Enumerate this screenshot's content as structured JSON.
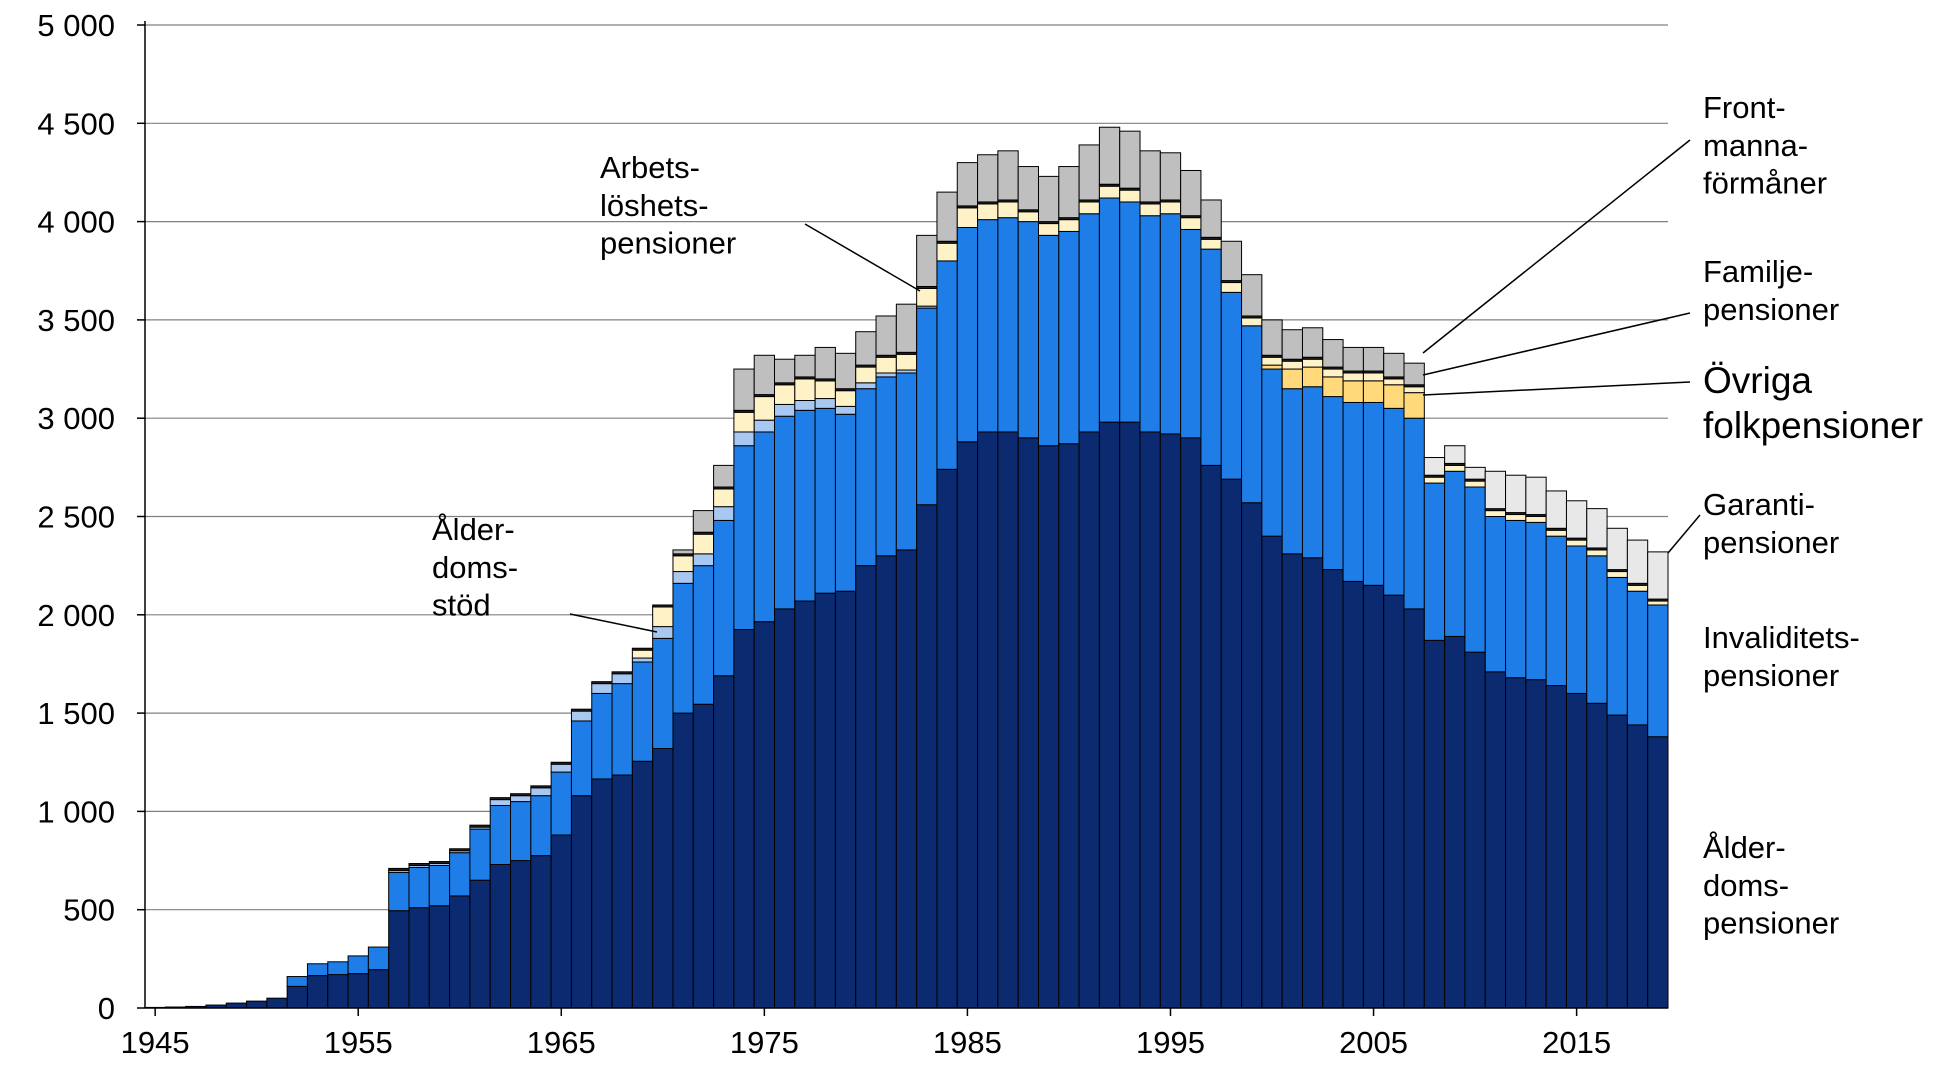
{
  "chart_data": {
    "type": "stacked_bar",
    "x": [
      1945,
      1946,
      1947,
      1948,
      1949,
      1950,
      1951,
      1952,
      1953,
      1954,
      1955,
      1956,
      1957,
      1958,
      1959,
      1960,
      1961,
      1962,
      1963,
      1964,
      1965,
      1966,
      1967,
      1968,
      1969,
      1970,
      1971,
      1972,
      1973,
      1974,
      1975,
      1976,
      1977,
      1978,
      1979,
      1980,
      1981,
      1982,
      1983,
      1984,
      1985,
      1986,
      1987,
      1988,
      1989,
      1990,
      1991,
      1992,
      1993,
      1994,
      1995,
      1996,
      1997,
      1998,
      1999,
      2000,
      2001,
      2002,
      2003,
      2004,
      2005,
      2006,
      2007,
      2008,
      2009,
      2010,
      2011,
      2012,
      2013,
      2014,
      2015,
      2016,
      2017,
      2018,
      2019
    ],
    "xlim": [
      1944.5,
      2019.5
    ],
    "xticks": [
      1945,
      1955,
      1965,
      1975,
      1985,
      1995,
      2005,
      2015
    ],
    "ylim": [
      0,
      5000
    ],
    "yticks": [
      0,
      500,
      {
        "value": 1000,
        "label": "1 000"
      },
      {
        "value": 1500,
        "label": "1 500"
      },
      {
        "value": 2000,
        "label": "2 000"
      },
      {
        "value": 2500,
        "label": "2 500"
      },
      {
        "value": 3000,
        "label": "3 000"
      },
      {
        "value": 3500,
        "label": "3 500"
      },
      {
        "value": 4000,
        "label": "4 000"
      },
      {
        "value": 4500,
        "label": "4 500"
      },
      {
        "value": 5000,
        "label": "5 000"
      }
    ],
    "grid": true,
    "series": [
      {
        "name": "Ålder-\ndoms-\npensioner",
        "color": "#0b2a6f",
        "values": [
          3,
          5,
          8,
          15,
          25,
          35,
          50,
          110,
          165,
          170,
          175,
          195,
          495,
          510,
          520,
          570,
          650,
          730,
          750,
          775,
          880,
          1080,
          1165,
          1185,
          1255,
          1320,
          1500,
          1545,
          1690,
          1925,
          1965,
          2030,
          2070,
          2110,
          2120,
          2250,
          2300,
          2330,
          2560,
          2740,
          2880,
          2930,
          2930,
          2900,
          2860,
          2870,
          2930,
          2980,
          2980,
          2930,
          2920,
          2900,
          2760,
          2690,
          2570,
          2400,
          2310,
          2290,
          2230,
          2170,
          2150,
          2100,
          2030,
          1870,
          1890,
          1810,
          1710,
          1680,
          1670,
          1640,
          1600,
          1550,
          1490,
          1440,
          1380
        ]
      },
      {
        "name": "Invaliditets-\npensioner",
        "color": "#1f7de8",
        "values": [
          0,
          0,
          0,
          0,
          0,
          0,
          0,
          50,
          60,
          65,
          90,
          115,
          195,
          205,
          205,
          220,
          260,
          300,
          300,
          305,
          320,
          380,
          435,
          465,
          505,
          560,
          660,
          705,
          790,
          935,
          965,
          980,
          970,
          940,
          900,
          900,
          910,
          900,
          1000,
          1060,
          1090,
          1080,
          1090,
          1100,
          1070,
          1080,
          1110,
          1140,
          1120,
          1100,
          1120,
          1060,
          1100,
          950,
          900,
          850,
          840,
          870,
          880,
          910,
          930,
          950,
          970,
          800,
          840,
          840,
          790,
          800,
          800,
          760,
          750,
          750,
          700,
          680,
          670
        ]
      },
      {
        "name": "Ålder-\ndoms-\nstöd",
        "color": "#a8c8f2",
        "values": [
          0,
          0,
          0,
          0,
          0,
          0,
          0,
          0,
          0,
          0,
          0,
          0,
          10,
          10,
          10,
          10,
          10,
          30,
          30,
          40,
          40,
          50,
          50,
          50,
          20,
          60,
          60,
          60,
          70,
          70,
          60,
          60,
          50,
          50,
          40,
          30,
          20,
          15,
          10,
          0,
          0,
          0,
          0,
          0,
          0,
          0,
          0,
          0,
          0,
          0,
          0,
          0,
          0,
          0,
          0,
          0,
          0,
          0,
          0,
          0,
          0,
          0,
          0,
          0,
          0,
          0,
          0,
          0,
          0,
          0,
          0,
          0,
          0,
          0,
          0
        ]
      },
      {
        "name": "Övriga\nfolkpensioner",
        "color": "#ffd97a",
        "values": [
          0,
          0,
          0,
          0,
          0,
          0,
          0,
          0,
          0,
          0,
          0,
          0,
          0,
          0,
          0,
          0,
          0,
          0,
          0,
          0,
          0,
          0,
          0,
          0,
          0,
          0,
          0,
          0,
          0,
          0,
          0,
          0,
          0,
          0,
          0,
          0,
          0,
          0,
          0,
          0,
          0,
          0,
          0,
          0,
          0,
          0,
          0,
          0,
          0,
          0,
          0,
          0,
          0,
          0,
          0,
          20,
          100,
          100,
          100,
          110,
          110,
          120,
          130,
          0,
          0,
          0,
          0,
          0,
          0,
          0,
          0,
          0,
          0,
          0,
          0
        ]
      },
      {
        "name": "Arbets-\nlöshets-\npensioner",
        "color": "#fff2c6",
        "values": [
          0,
          0,
          0,
          0,
          0,
          0,
          0,
          0,
          0,
          0,
          0,
          0,
          0,
          0,
          0,
          0,
          0,
          0,
          0,
          0,
          0,
          0,
          0,
          0,
          40,
          100,
          80,
          100,
          90,
          100,
          120,
          100,
          110,
          90,
          80,
          80,
          80,
          80,
          90,
          90,
          100,
          80,
          80,
          50,
          60,
          60,
          60,
          60,
          60,
          60,
          60,
          60,
          50,
          50,
          40,
          40,
          40,
          40,
          40,
          40,
          40,
          30,
          30,
          30,
          30,
          30,
          30,
          30,
          30,
          30,
          30,
          30,
          30,
          30,
          20
        ]
      },
      {
        "name": "Familje-\npensioner",
        "color": "#222222",
        "values": [
          0,
          0,
          0,
          0,
          0,
          0,
          0,
          0,
          0,
          0,
          0,
          0,
          10,
          10,
          10,
          10,
          10,
          10,
          10,
          10,
          10,
          10,
          10,
          10,
          10,
          10,
          10,
          10,
          10,
          10,
          10,
          10,
          10,
          10,
          10,
          10,
          10,
          10,
          10,
          10,
          10,
          10,
          10,
          10,
          10,
          10,
          10,
          10,
          10,
          10,
          10,
          10,
          10,
          10,
          10,
          10,
          10,
          10,
          10,
          10,
          10,
          10,
          10,
          10,
          10,
          10,
          10,
          10,
          10,
          10,
          10,
          10,
          10,
          10,
          10
        ]
      },
      {
        "name": "Front-\nmanna-\nförmåner",
        "color": "#bfbfbf",
        "values": [
          0,
          0,
          0,
          0,
          0,
          0,
          0,
          0,
          0,
          0,
          0,
          0,
          0,
          0,
          0,
          0,
          0,
          0,
          0,
          0,
          0,
          0,
          0,
          0,
          0,
          0,
          20,
          110,
          110,
          210,
          200,
          120,
          110,
          160,
          180,
          170,
          200,
          245,
          260,
          250,
          220,
          240,
          250,
          220,
          230,
          260,
          280,
          290,
          290,
          260,
          240,
          230,
          190,
          200,
          210,
          180,
          150,
          150,
          140,
          120,
          120,
          120,
          110,
          0,
          0,
          0,
          0,
          0,
          0,
          0,
          0,
          0,
          0,
          0,
          0
        ]
      },
      {
        "name": "Garanti-\npensioner",
        "color": "#e8e8e8",
        "values": [
          0,
          0,
          0,
          0,
          0,
          0,
          0,
          0,
          0,
          0,
          0,
          0,
          0,
          0,
          0,
          0,
          0,
          0,
          0,
          0,
          0,
          0,
          0,
          0,
          0,
          0,
          0,
          0,
          0,
          0,
          0,
          0,
          0,
          0,
          0,
          0,
          0,
          0,
          0,
          0,
          0,
          0,
          0,
          0,
          0,
          0,
          0,
          0,
          0,
          0,
          0,
          0,
          0,
          0,
          0,
          0,
          0,
          0,
          0,
          0,
          0,
          0,
          0,
          90,
          90,
          60,
          190,
          190,
          190,
          190,
          190,
          200,
          210,
          220,
          240
        ]
      }
    ]
  }
}
